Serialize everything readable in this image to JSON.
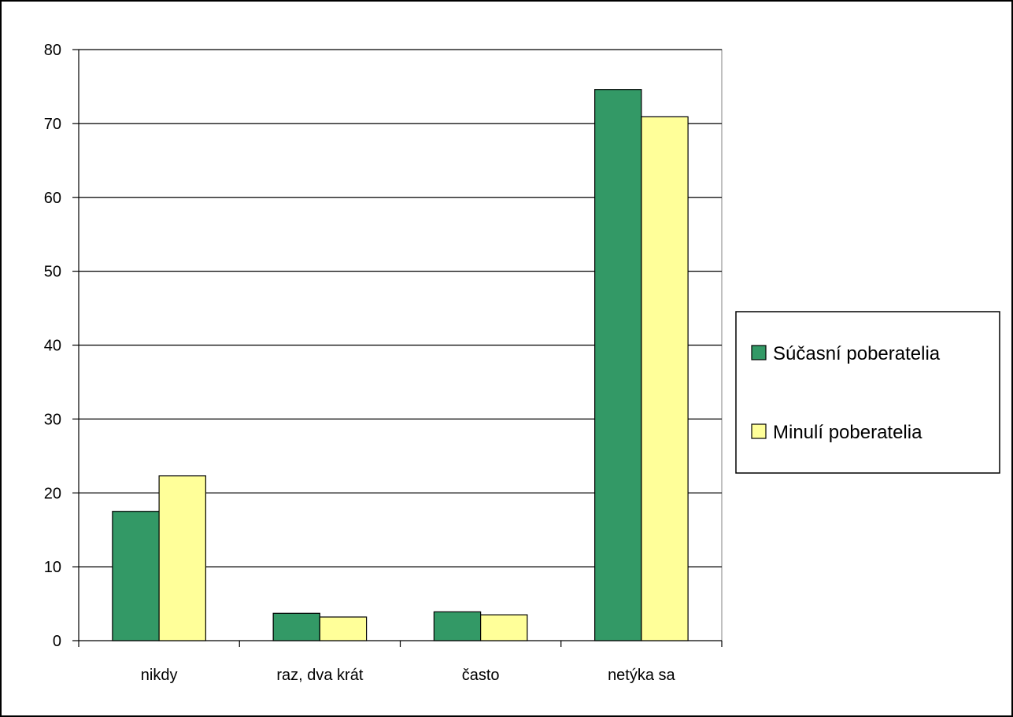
{
  "chart_data": {
    "type": "bar",
    "title": "",
    "xlabel": "",
    "ylabel": "",
    "categories": [
      "nikdy",
      "raz, dva krát",
      "často",
      "netýka sa"
    ],
    "series": [
      {
        "name": "Súčasní poberatelia",
        "values": [
          17.5,
          3.7,
          3.9,
          74.6
        ],
        "color": "#339966"
      },
      {
        "name": "Minulí poberatelia",
        "values": [
          22.3,
          3.2,
          3.5,
          70.9
        ],
        "color": "#ffff99"
      }
    ],
    "ylim": [
      0,
      80
    ],
    "yticks": [
      0,
      10,
      20,
      30,
      40,
      50,
      60,
      70,
      80
    ],
    "grid": true,
    "legend": "right"
  }
}
